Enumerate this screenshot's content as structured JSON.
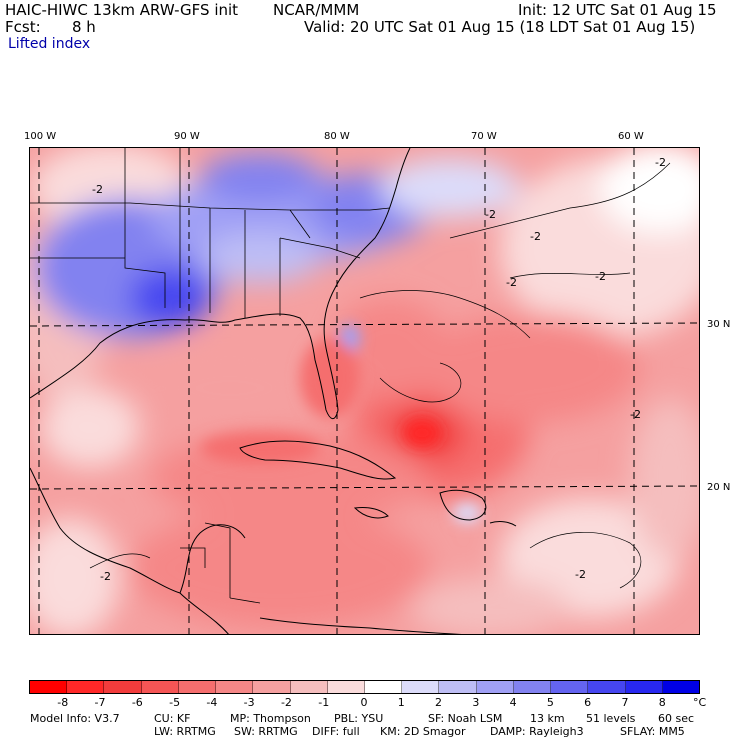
{
  "header": {
    "model_title": "HAIC-HIWC 13km ARW-GFS init",
    "org": "NCAR/MMM",
    "init_time": "Init: 12 UTC Sat 01 Aug 15",
    "forecast_label": "Fcst:",
    "forecast_hours": "8 h",
    "valid_time": "Valid: 20 UTC Sat 01 Aug 15 (18 LDT Sat 01 Aug 15)",
    "field_name": "Lifted index"
  },
  "map": {
    "longitude_labels": [
      "100 W",
      "90 W",
      "80 W",
      "70 W",
      "60 W"
    ],
    "latitude_labels": [
      "30 N",
      "20 N"
    ],
    "contour_labels": [
      "-2",
      "-2",
      "-2",
      "-2",
      "-2",
      "-2",
      "-2",
      "-2",
      "-2"
    ]
  },
  "colorbar": {
    "colors": [
      "#ff0000",
      "#ff2828",
      "#f23c3c",
      "#f55555",
      "#f56e6e",
      "#f58787",
      "#f5a0a0",
      "#f5bebe",
      "#fadcdc",
      "#ffffff",
      "#dcdcfa",
      "#bebef5",
      "#a0a0f5",
      "#8282f0",
      "#6464f0",
      "#4646f0",
      "#2828f0",
      "#0000e6"
    ],
    "labels": [
      "-8",
      "-7",
      "-6",
      "-5",
      "-4",
      "-3",
      "-2",
      "-1",
      "0",
      "1",
      "2",
      "3",
      "4",
      "5",
      "6",
      "7",
      "8"
    ],
    "unit": "°C"
  },
  "model_info": {
    "line1": [
      "Model Info: V3.7",
      "CU: KF",
      "MP: Thompson",
      "PBL: YSU",
      "SF: Noah LSM",
      "13 km",
      "51 levels",
      "60 sec"
    ],
    "line2": [
      "LW: RRTMG",
      "SW: RRTMG",
      "DIFF: full",
      "KM: 2D Smagor",
      "DAMP: Rayleigh3",
      "SFLAY: MM5"
    ]
  }
}
